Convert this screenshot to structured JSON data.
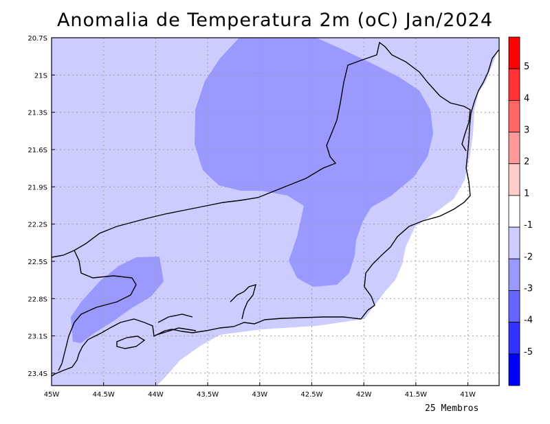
{
  "title": "Anomalia de Temperatura 2m (oC) Jan/2024",
  "footer": "25 Membros",
  "map": {
    "lat_ticks": [
      "20.7S",
      "21S",
      "21.3S",
      "21.6S",
      "21.9S",
      "22.2S",
      "22.5S",
      "22.8S",
      "23.1S",
      "23.4S"
    ],
    "lon_ticks": [
      "45W",
      "44.5W",
      "44W",
      "43.5W",
      "43W",
      "42.5W",
      "42W",
      "41.5W",
      "41W"
    ],
    "extent": {
      "lon_min": -45.0,
      "lon_max": -40.7,
      "lat_min": -23.5,
      "lat_max": -20.7
    }
  },
  "colorbar": {
    "tick_labels": [
      "5",
      "4",
      "3",
      "2",
      "1",
      "-1",
      "-2",
      "-3",
      "-4",
      "-5"
    ],
    "colors_top_to_bottom": [
      "#ff0000",
      "#ff3333",
      "#ff6666",
      "#ff9999",
      "#ffcccc",
      "#ffffff",
      "#ccccff",
      "#9999ff",
      "#6666ff",
      "#3333ff",
      "#0000ff"
    ]
  },
  "colors": {
    "anom_minus1": "#ccccff",
    "anom_minus2": "#9999ff",
    "white": "#ffffff",
    "coast": "#000000",
    "grid": "#a0a0a0"
  }
}
